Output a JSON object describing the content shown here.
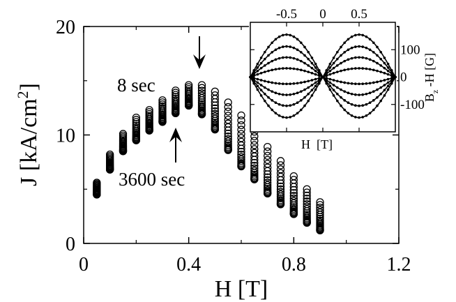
{
  "chart_data": [
    {
      "type": "scatter",
      "title": "",
      "xlabel": "H [T]",
      "ylabel": "J [kA/cm",
      "ylabel_sup": "2",
      "ylabel_close": "]",
      "xlim": [
        0,
        1.2
      ],
      "ylim": [
        0,
        20
      ],
      "xticks": [
        0,
        0.4,
        0.8,
        1.2
      ],
      "xtick_labels": [
        "0",
        "0.4",
        "0.8",
        "1.2"
      ],
      "yticks": [
        0,
        10,
        20
      ],
      "ytick_labels": [
        "0",
        "10",
        "20"
      ],
      "marker": "open-circle",
      "grid": false,
      "x": [
        0.05,
        0.1,
        0.15,
        0.2,
        0.25,
        0.3,
        0.35,
        0.4,
        0.45,
        0.5,
        0.55,
        0.6,
        0.65,
        0.7,
        0.75,
        0.8,
        0.85,
        0.9
      ],
      "series_top": [
        5.6,
        8.2,
        10.1,
        11.6,
        12.3,
        13.2,
        14.1,
        14.6,
        14.6,
        14.0,
        13.0,
        11.8,
        10.3,
        8.9,
        7.6,
        6.2,
        5.0,
        3.8
      ],
      "series_bottom": [
        4.5,
        6.8,
        8.5,
        9.5,
        10.4,
        11.2,
        12.0,
        12.7,
        11.9,
        10.5,
        8.6,
        7.1,
        5.9,
        4.6,
        3.6,
        2.7,
        1.9,
        1.2
      ],
      "annotations": [
        {
          "text": "8 sec",
          "arrow": "down",
          "at_x": 0.43
        },
        {
          "text": "3600 sec",
          "arrow": "up",
          "at_x": 0.36
        }
      ]
    },
    {
      "type": "line",
      "title": "",
      "xlabel": "H  [T]",
      "ylabel_main": "B",
      "ylabel_sub": "z",
      "ylabel_rest": " -H [G]",
      "xlim": [
        -1.0,
        1.0
      ],
      "ylim": [
        -200,
        200
      ],
      "xticks": [
        -0.5,
        0,
        0.5
      ],
      "xtick_labels": [
        "-0.5",
        "0",
        "0.5"
      ],
      "yticks": [
        -100,
        0,
        100
      ],
      "ytick_labels": [
        "-100",
        "0",
        "100"
      ],
      "marker": "small-dot",
      "grid": false,
      "curve_peak_x": 0.5,
      "curve_amplitudes": [
        155,
        112,
        72,
        32,
        -25,
        -65,
        -105,
        -148
      ]
    }
  ]
}
